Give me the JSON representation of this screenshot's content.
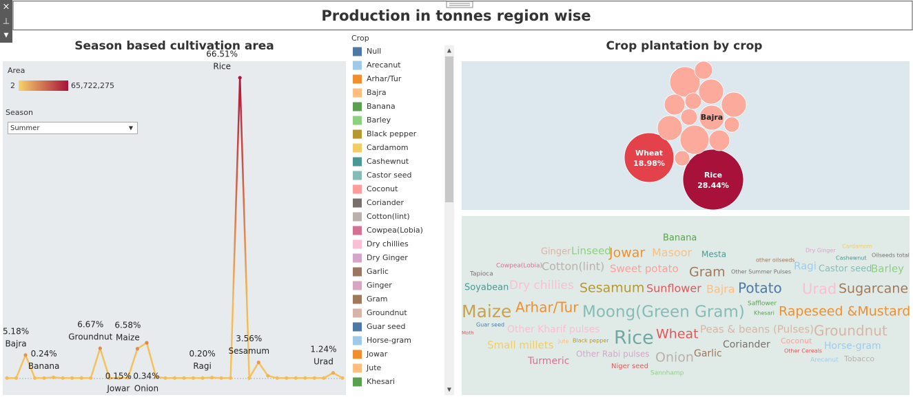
{
  "header": {
    "title": "Production in tonnes region wise"
  },
  "left_panel": {
    "title": "Season based cultivation area"
  },
  "right_panel": {
    "title": "Crop plantation by crop"
  },
  "area_legend": {
    "title": "Area",
    "min_label": "2",
    "max_label": "65,722,275",
    "colors": [
      "#f7d36a",
      "#a8123a"
    ]
  },
  "season_filter": {
    "title": "Season",
    "value": "Summer"
  },
  "crop_legend": {
    "title": "Crop",
    "items": [
      {
        "name": "Null",
        "color": "#4e79a7"
      },
      {
        "name": "Arecanut",
        "color": "#a0cbe8"
      },
      {
        "name": "Arhar/Tur",
        "color": "#f28e2b"
      },
      {
        "name": "Bajra",
        "color": "#ffbe7d"
      },
      {
        "name": "Banana",
        "color": "#59a14f"
      },
      {
        "name": "Barley",
        "color": "#8cd17d"
      },
      {
        "name": "Black pepper",
        "color": "#b6992d"
      },
      {
        "name": "Cardamom",
        "color": "#f1ce63"
      },
      {
        "name": "Cashewnut",
        "color": "#499894"
      },
      {
        "name": "Castor seed",
        "color": "#86bcb6"
      },
      {
        "name": "Coconut",
        "color": "#ff9d9a"
      },
      {
        "name": "Coriander",
        "color": "#79706e"
      },
      {
        "name": "Cotton(lint)",
        "color": "#bab0ac"
      },
      {
        "name": "Cowpea(Lobia)",
        "color": "#d37295"
      },
      {
        "name": "Dry chillies",
        "color": "#fabfd2"
      },
      {
        "name": "Dry Ginger",
        "color": "#d4a6c8"
      },
      {
        "name": "Garlic",
        "color": "#9d7660"
      },
      {
        "name": "Ginger",
        "color": "#d7a6c0"
      },
      {
        "name": "Gram",
        "color": "#a0785a"
      },
      {
        "name": "Groundnut",
        "color": "#d7b5a6"
      },
      {
        "name": "Guar seed",
        "color": "#4e79a7"
      },
      {
        "name": "Horse-gram",
        "color": "#a0cbe8"
      },
      {
        "name": "Jowar",
        "color": "#f28e2b"
      },
      {
        "name": "Jute",
        "color": "#ffbe7d"
      },
      {
        "name": "Khesari",
        "color": "#59a14f"
      }
    ]
  },
  "chart_data": [
    {
      "type": "line",
      "color": "#f5c35a",
      "high_color": "#b3163a",
      "ylim": [
        0,
        70
      ],
      "categories": [
        null,
        null,
        "Bajra",
        null,
        null,
        "Banana",
        null,
        null,
        null,
        null,
        "Groundnut",
        null,
        null,
        "Jowar",
        "Maize",
        null,
        "Onion",
        null,
        null,
        null,
        null,
        null,
        "Ragi",
        null,
        null,
        "Rice",
        null,
        "Sesamum",
        null,
        null,
        null,
        null,
        null,
        null,
        null,
        "Urad",
        null
      ],
      "values": [
        0.1,
        0.1,
        5.18,
        0.1,
        0.1,
        0.24,
        0.1,
        0.1,
        0.1,
        0.1,
        6.67,
        0.1,
        0.1,
        0.15,
        6.58,
        7.9,
        0.34,
        0.1,
        0.1,
        0.1,
        0.1,
        0.1,
        0.2,
        0.1,
        0.1,
        66.51,
        0.1,
        3.56,
        0.6,
        0.1,
        0.1,
        0.1,
        0.1,
        0.1,
        0.1,
        1.24,
        0.1
      ],
      "value_labels": [
        null,
        null,
        "5.18%",
        null,
        null,
        "0.24%",
        null,
        null,
        null,
        null,
        "6.67%",
        null,
        null,
        "0.15%",
        "6.58%",
        null,
        "0.34%",
        null,
        null,
        null,
        null,
        null,
        "0.20%",
        null,
        null,
        "66.51%",
        null,
        "3.56%",
        null,
        null,
        null,
        null,
        null,
        null,
        null,
        "1.24%",
        null
      ]
    },
    {
      "type": "bubble",
      "categories": [
        "Rice",
        "Wheat",
        "Bajra",
        null,
        null,
        null,
        null,
        null,
        null,
        null,
        null,
        null,
        null,
        null,
        null
      ],
      "values": [
        28.44,
        18.98,
        4.8,
        7.1,
        2.5,
        4.8,
        4.8,
        3.3,
        2.1,
        2.1,
        4.8,
        6.5,
        3.3,
        1.8,
        1.8
      ],
      "value_labels": [
        "28.44%",
        "18.98%",
        null,
        null,
        null,
        null,
        null,
        null,
        null,
        null,
        null,
        null,
        null,
        null,
        null
      ],
      "colors": [
        "#a8123a",
        "#e3424a",
        "#fbaa9c",
        "#fbaa9c",
        "#fbaa9c",
        "#fbaa9c",
        "#fbaa9c",
        "#fbaa9c",
        "#fbaa9c",
        "#fbaa9c",
        "#fbaa9c",
        "#fbaa9c",
        "#fbaa9c",
        "#fbaa9c",
        "#fbaa9c"
      ]
    }
  ],
  "word_cloud": [
    {
      "text": "Banana",
      "color": "#59a14f"
    },
    {
      "text": "Ginger",
      "color": "#d7b5a6"
    },
    {
      "text": "Linseed",
      "color": "#8cd17d"
    },
    {
      "text": "Jowar",
      "color": "#f28e2b"
    },
    {
      "text": "Masoor",
      "color": "#ffbe7d"
    },
    {
      "text": "Mesta",
      "color": "#499894"
    },
    {
      "text": "other oilseeds",
      "color": "#9d7660"
    },
    {
      "text": "Dry Ginger",
      "color": "#d4a6c8"
    },
    {
      "text": "Cardamom",
      "color": "#f1ce63"
    },
    {
      "text": "Oilseeds total",
      "color": "#79706e"
    },
    {
      "text": "Cashewnut",
      "color": "#499894"
    },
    {
      "text": "Tapioca",
      "color": "#79706e"
    },
    {
      "text": "Cowpea(Lobia)",
      "color": "#d37295"
    },
    {
      "text": "Cotton(lint)",
      "color": "#bab0ac"
    },
    {
      "text": "Sweet potato",
      "color": "#ff9d9a"
    },
    {
      "text": "Gram",
      "color": "#a0785a"
    },
    {
      "text": "Other Summer Pulses",
      "color": "#79706e"
    },
    {
      "text": "Ragi",
      "color": "#a0cbe8"
    },
    {
      "text": "Castor seed",
      "color": "#86bcb6"
    },
    {
      "text": "Barley",
      "color": "#8cd17d"
    },
    {
      "text": "Soyabean",
      "color": "#499894"
    },
    {
      "text": "Dry chillies",
      "color": "#fabfd2"
    },
    {
      "text": "Sesamum",
      "color": "#b6992d"
    },
    {
      "text": "Sunflower",
      "color": "#e15759"
    },
    {
      "text": "Bajra",
      "color": "#ffbe7d"
    },
    {
      "text": "Potato",
      "color": "#4e79a7"
    },
    {
      "text": "Urad",
      "color": "#fabfd2"
    },
    {
      "text": "Sugarcane",
      "color": "#a0785a"
    },
    {
      "text": "Safflower",
      "color": "#59a14f"
    },
    {
      "text": "Khesari",
      "color": "#59a14f"
    },
    {
      "text": "Maize",
      "color": "#c8a24e"
    },
    {
      "text": "Arhar/Tur",
      "color": "#f28e2b"
    },
    {
      "text": "Moong(Green Gram)",
      "color": "#86bcb6"
    },
    {
      "text": "Rapeseed &Mustard",
      "color": "#f28e2b"
    },
    {
      "text": "Guar seed",
      "color": "#4e79a7"
    },
    {
      "text": "Moth",
      "color": "#e15759"
    },
    {
      "text": "Other Kharif pulses",
      "color": "#fabfd2"
    },
    {
      "text": "Rice",
      "color": "#71a8a5"
    },
    {
      "text": "Wheat",
      "color": "#e15759"
    },
    {
      "text": "Peas & beans (Pulses)",
      "color": "#d7b5a6"
    },
    {
      "text": "Groundnut",
      "color": "#d7b5a6"
    },
    {
      "text": "Small millets",
      "color": "#f1ce63"
    },
    {
      "text": "Jute",
      "color": "#ffbe7d"
    },
    {
      "text": "Black pepper",
      "color": "#b6992d"
    },
    {
      "text": "Coriander",
      "color": "#79706e"
    },
    {
      "text": "Coconut",
      "color": "#ff9d9a"
    },
    {
      "text": "Other Cereals",
      "color": "#e15759"
    },
    {
      "text": "Horse-gram",
      "color": "#a0cbe8"
    },
    {
      "text": "Turmeric",
      "color": "#d37295"
    },
    {
      "text": "Other Rabi pulses",
      "color": "#d4a6c8"
    },
    {
      "text": "Onion",
      "color": "#bab0ac"
    },
    {
      "text": "Garlic",
      "color": "#9d7660"
    },
    {
      "text": "Arecanut",
      "color": "#a0cbe8"
    },
    {
      "text": "Tobacco",
      "color": "#bab0ac"
    },
    {
      "text": "Niger seed",
      "color": "#e15759"
    },
    {
      "text": "Sannhamp",
      "color": "#8cd17d"
    }
  ]
}
